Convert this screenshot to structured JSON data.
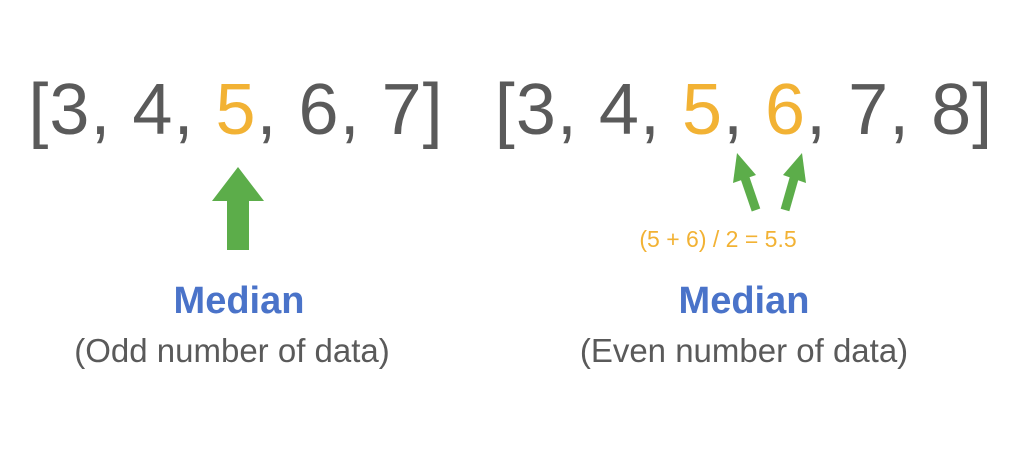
{
  "odd": {
    "open_bracket": "[",
    "tokens": [
      {
        "text": "3",
        "sep": ", ",
        "highlight": false
      },
      {
        "text": "4",
        "sep": ", ",
        "highlight": false
      },
      {
        "text": "5",
        "sep": ", ",
        "highlight": true
      },
      {
        "text": "6",
        "sep": ", ",
        "highlight": false
      },
      {
        "text": "7",
        "sep": "",
        "highlight": false
      }
    ],
    "close_bracket": "]",
    "label": "Median",
    "sublabel": "(Odd number of data)"
  },
  "even": {
    "open_bracket": "[",
    "tokens": [
      {
        "text": "3",
        "sep": ", ",
        "highlight": false
      },
      {
        "text": "4",
        "sep": ", ",
        "highlight": false
      },
      {
        "text": "5",
        "sep": ", ",
        "highlight": true
      },
      {
        "text": "6",
        "sep": ", ",
        "highlight": true
      },
      {
        "text": "7",
        "sep": ", ",
        "highlight": false
      },
      {
        "text": "8",
        "sep": "",
        "highlight": false
      }
    ],
    "close_bracket": "]",
    "formula": "(5 + 6) / 2 = 5.5",
    "label": "Median",
    "sublabel": "(Even number of data)"
  },
  "colors": {
    "text": "#5a5a5a",
    "highlight": "#f2b234",
    "arrow": "#5cad4a",
    "label": "#4a73c9"
  }
}
